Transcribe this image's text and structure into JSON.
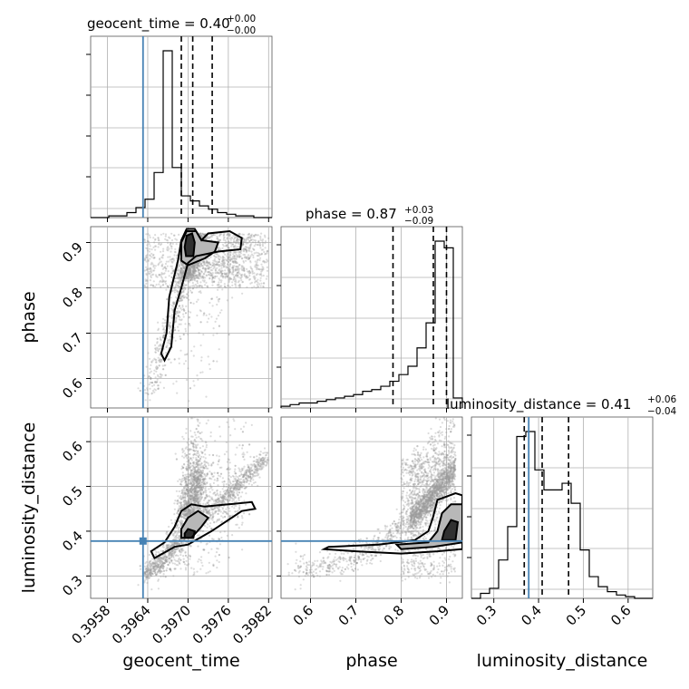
{
  "chart_data": {
    "type": "corner",
    "parameters": [
      {
        "name": "geocent_time",
        "axis_label": "geocent_time",
        "title": "geocent_time = 0.40",
        "title_plus": "+0.00",
        "title_minus": "−0.00",
        "range": [
          0.39555,
          0.39825
        ],
        "ticks": [
          "0.3958",
          "0.3964",
          "0.3970",
          "0.3976",
          "0.3982"
        ],
        "tick_values": [
          0.3958,
          0.3964,
          0.397,
          0.3976,
          0.3982
        ],
        "truth": 0.39633,
        "quantiles": [
          0.3969,
          0.39707,
          0.39736
        ],
        "hist_edges_start": 0.39555,
        "hist_bin_width": 0.000135,
        "hist": [
          0,
          0,
          1,
          1,
          3,
          6,
          11,
          27,
          100,
          30,
          13,
          10,
          7,
          5,
          3,
          2,
          1,
          1,
          0,
          0
        ]
      },
      {
        "name": "phase",
        "axis_label": "phase",
        "title": "phase = 0.87",
        "title_plus": "+0.03",
        "title_minus": "−0.09",
        "range": [
          0.535,
          0.935
        ],
        "ticks": [
          "0.6",
          "0.7",
          "0.8",
          "0.9"
        ],
        "tick_values": [
          0.6,
          0.7,
          0.8,
          0.9
        ],
        "truth": null,
        "quantiles": [
          0.782,
          0.871,
          0.9
        ],
        "hist_edges_start": 0.535,
        "hist_bin_width": 0.02,
        "hist": [
          1,
          2,
          3,
          3,
          4,
          5,
          6,
          7,
          8,
          10,
          11,
          13,
          16,
          20,
          25,
          36,
          51,
          100,
          96,
          6
        ]
      },
      {
        "name": "luminosity_distance",
        "axis_label": "luminosity_distance",
        "title": "luminosity_distance = 0.41",
        "title_plus": "+0.06",
        "title_minus": "−0.04",
        "range": [
          0.25,
          0.655
        ],
        "ticks": [
          "0.3",
          "0.4",
          "0.5",
          "0.6"
        ],
        "tick_values": [
          0.3,
          0.4,
          0.5,
          0.6
        ],
        "truth": 0.378,
        "quantiles": [
          0.368,
          0.408,
          0.467
        ],
        "hist_edges_start": 0.25,
        "hist_bin_width": 0.02025,
        "hist": [
          0,
          3,
          6,
          23,
          43,
          97,
          100,
          77,
          65,
          65,
          69,
          57,
          29,
          13,
          7,
          4,
          2,
          1,
          0,
          0
        ]
      }
    ],
    "grid": true,
    "truth_color": "#4682b4",
    "colors": {
      "line": "#000000",
      "truth": "#4682b4",
      "grid": "#b0b0b0",
      "scatter": "#9a9a9a"
    }
  }
}
